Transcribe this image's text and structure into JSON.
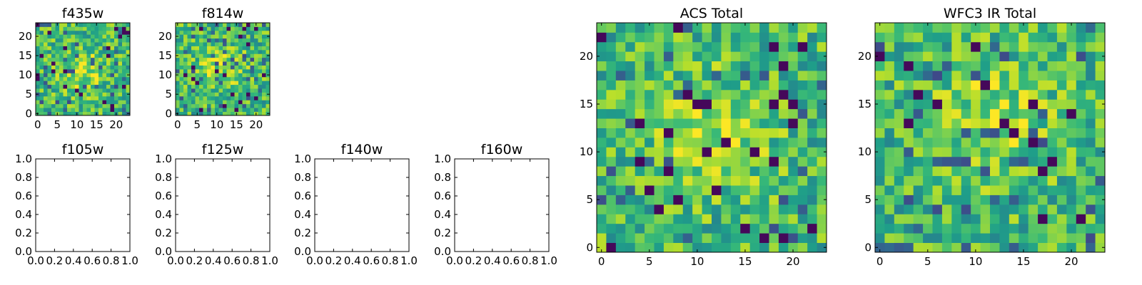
{
  "figure": {
    "colormap": "viridis",
    "colors": {
      "background": "#ffffff",
      "axes": "#000000"
    }
  },
  "chart_data": [
    {
      "id": "f435w",
      "type": "heatmap",
      "title": "f435w",
      "grid": "24x24 pixel image",
      "xticks": [
        "0",
        "5",
        "10",
        "15",
        "20"
      ],
      "yticks": [
        "0",
        "5",
        "10",
        "15",
        "20"
      ],
      "xlim": [
        -0.5,
        23.5
      ],
      "ylim": [
        -0.5,
        23.5
      ],
      "origin": "lower",
      "seed": 11,
      "peak": [
        11,
        11
      ]
    },
    {
      "id": "f814w",
      "type": "heatmap",
      "title": "f814w",
      "grid": "24x24 pixel image",
      "xticks": [
        "0",
        "5",
        "10",
        "15",
        "20"
      ],
      "yticks": [
        "0",
        "5",
        "10",
        "15",
        "20"
      ],
      "xlim": [
        -0.5,
        23.5
      ],
      "ylim": [
        -0.5,
        23.5
      ],
      "origin": "lower",
      "seed": 23,
      "peak": [
        12,
        11
      ]
    },
    {
      "id": "f105w",
      "type": "line",
      "title": "f105w",
      "empty": true,
      "xticks": [
        "0.0",
        "0.2",
        "0.4",
        "0.6",
        "0.8",
        "1.0"
      ],
      "yticks": [
        "0.0",
        "0.2",
        "0.4",
        "0.6",
        "0.8",
        "1.0"
      ],
      "xlim": [
        0,
        1
      ],
      "ylim": [
        0,
        1
      ]
    },
    {
      "id": "f125w",
      "type": "line",
      "title": "f125w",
      "empty": true,
      "xticks": [
        "0.0",
        "0.2",
        "0.4",
        "0.6",
        "0.8",
        "1.0"
      ],
      "yticks": [
        "0.0",
        "0.2",
        "0.4",
        "0.6",
        "0.8",
        "1.0"
      ],
      "xlim": [
        0,
        1
      ],
      "ylim": [
        0,
        1
      ]
    },
    {
      "id": "f140w",
      "type": "line",
      "title": "f140w",
      "empty": true,
      "xticks": [
        "0.0",
        "0.2",
        "0.4",
        "0.6",
        "0.8",
        "1.0"
      ],
      "yticks": [
        "0.0",
        "0.2",
        "0.4",
        "0.6",
        "0.8",
        "1.0"
      ],
      "xlim": [
        0,
        1
      ],
      "ylim": [
        0,
        1
      ]
    },
    {
      "id": "f160w",
      "type": "line",
      "title": "f160w",
      "empty": true,
      "xticks": [
        "0.0",
        "0.2",
        "0.4",
        "0.6",
        "0.8",
        "1.0"
      ],
      "yticks": [
        "0.0",
        "0.2",
        "0.4",
        "0.6",
        "0.8",
        "1.0"
      ],
      "xlim": [
        0,
        1
      ],
      "ylim": [
        0,
        1
      ]
    },
    {
      "id": "acs-total",
      "type": "heatmap",
      "title": "ACS Total",
      "grid": "24x24 pixel image",
      "xticks": [
        "0",
        "5",
        "10",
        "15",
        "20"
      ],
      "yticks": [
        "0",
        "5",
        "10",
        "15",
        "20"
      ],
      "xlim": [
        -0.5,
        23.5
      ],
      "ylim": [
        -0.5,
        23.5
      ],
      "origin": "lower",
      "seed": 37,
      "peak": [
        12,
        12
      ]
    },
    {
      "id": "wfc3-ir-total",
      "type": "heatmap",
      "title": "WFC3 IR Total",
      "grid": "24x24 pixel image",
      "xticks": [
        "0",
        "5",
        "10",
        "15",
        "20"
      ],
      "yticks": [
        "0",
        "5",
        "10",
        "15",
        "20"
      ],
      "xlim": [
        -0.5,
        23.5
      ],
      "ylim": [
        -0.5,
        23.5
      ],
      "origin": "lower",
      "seed": 53,
      "peak": [
        13,
        12
      ]
    }
  ]
}
